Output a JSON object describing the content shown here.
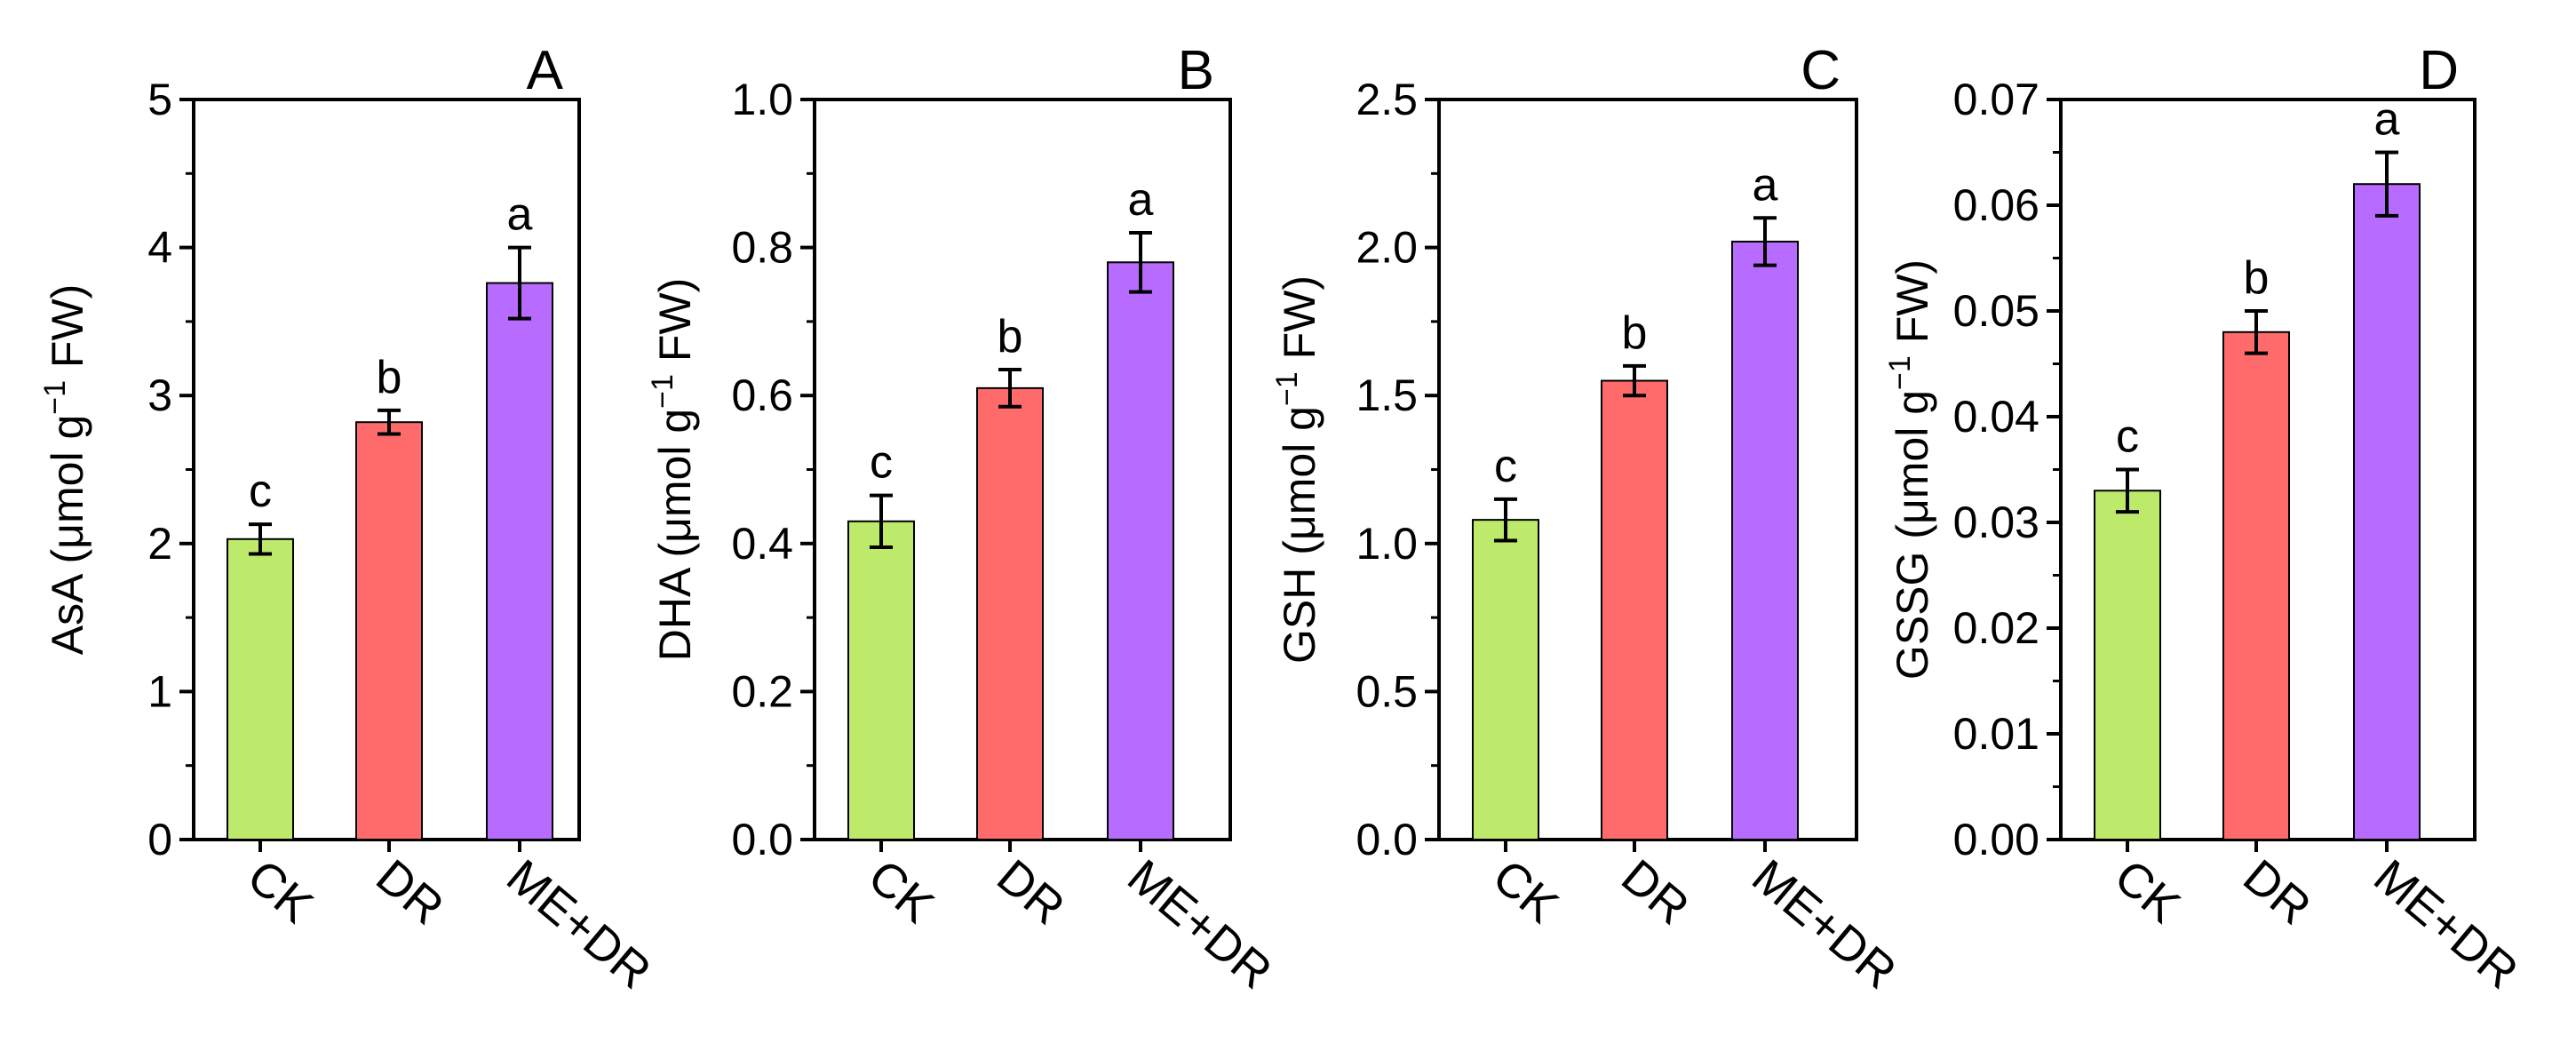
{
  "chart_data": [
    {
      "type": "bar",
      "panel_label": "A",
      "ylabel_main": "AsA (μmol g",
      "ylabel_sup": "−1",
      "ylabel_end": " FW)",
      "categories": [
        "CK",
        "DR",
        "ME+DR"
      ],
      "values": [
        2.03,
        2.82,
        3.76
      ],
      "errors": [
        0.1,
        0.08,
        0.24
      ],
      "letters": [
        "c",
        "b",
        "a"
      ],
      "ylim": [
        0,
        5
      ],
      "ticks": [
        "0",
        "1",
        "2",
        "3",
        "4",
        "5"
      ],
      "tick_values": [
        0,
        1,
        2,
        3,
        4,
        5
      ]
    },
    {
      "type": "bar",
      "panel_label": "B",
      "ylabel_main": "DHA (μmol g",
      "ylabel_sup": "−1",
      "ylabel_end": " FW)",
      "categories": [
        "CK",
        "DR",
        "ME+DR"
      ],
      "values": [
        0.43,
        0.61,
        0.78
      ],
      "errors": [
        0.035,
        0.025,
        0.04
      ],
      "letters": [
        "c",
        "b",
        "a"
      ],
      "ylim": [
        0,
        1.0
      ],
      "ticks": [
        "0.0",
        "0.2",
        "0.4",
        "0.6",
        "0.8",
        "1.0"
      ],
      "tick_values": [
        0,
        0.2,
        0.4,
        0.6,
        0.8,
        1.0
      ]
    },
    {
      "type": "bar",
      "panel_label": "C",
      "ylabel_main": "GSH (μmol g",
      "ylabel_sup": "−1",
      "ylabel_end": " FW)",
      "categories": [
        "CK",
        "DR",
        "ME+DR"
      ],
      "values": [
        1.08,
        1.55,
        2.02
      ],
      "errors": [
        0.07,
        0.05,
        0.08
      ],
      "letters": [
        "c",
        "b",
        "a"
      ],
      "ylim": [
        0,
        2.5
      ],
      "ticks": [
        "0.0",
        "0.5",
        "1.0",
        "1.5",
        "2.0",
        "2.5"
      ],
      "tick_values": [
        0,
        0.5,
        1.0,
        1.5,
        2.0,
        2.5
      ]
    },
    {
      "type": "bar",
      "panel_label": "D",
      "ylabel_main": "GSSG (μmol g",
      "ylabel_sup": "−1",
      "ylabel_end": " FW)",
      "categories": [
        "CK",
        "DR",
        "ME+DR"
      ],
      "values": [
        0.033,
        0.048,
        0.062
      ],
      "errors": [
        0.002,
        0.002,
        0.003
      ],
      "letters": [
        "c",
        "b",
        "a"
      ],
      "ylim": [
        0,
        0.07
      ],
      "ticks": [
        "0.00",
        "0.01",
        "0.02",
        "0.03",
        "0.04",
        "0.05",
        "0.06",
        "0.07"
      ],
      "tick_values": [
        0,
        0.01,
        0.02,
        0.03,
        0.04,
        0.05,
        0.06,
        0.07
      ]
    }
  ],
  "colors": {
    "CK": "#bdea6a",
    "DR": "#ff6b6b",
    "ME+DR": "#b86bff"
  }
}
